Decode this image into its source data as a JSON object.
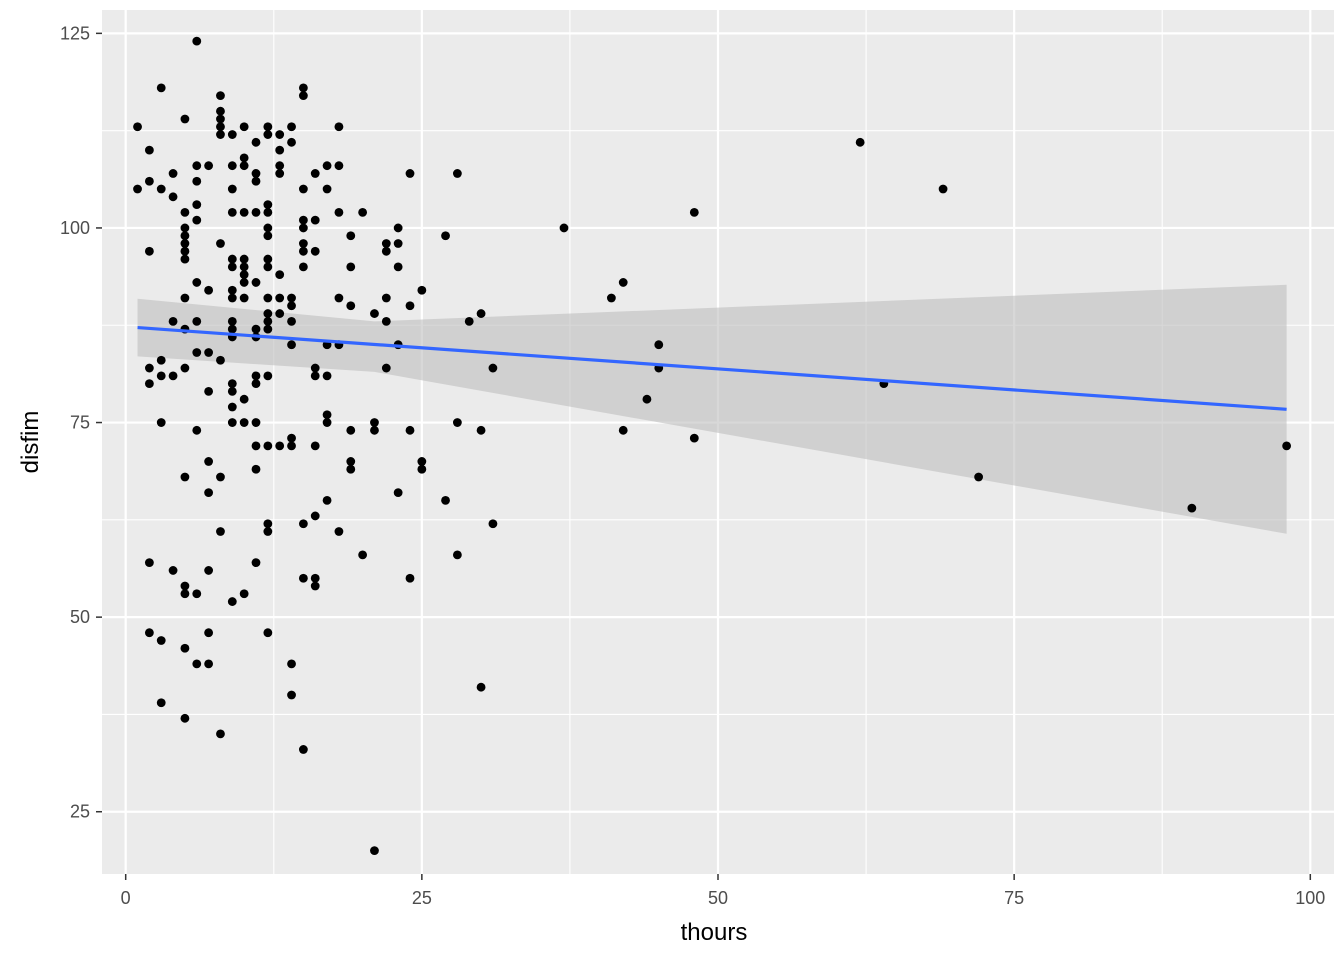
{
  "chart_data": {
    "type": "scatter",
    "xlabel": "thours",
    "ylabel": "disfim",
    "xlim": [
      -2,
      102
    ],
    "ylim": [
      17,
      128
    ],
    "x_ticks": [
      0,
      25,
      50,
      75,
      100
    ],
    "y_ticks": [
      25,
      50,
      75,
      100,
      125
    ],
    "x_minor": [
      12.5,
      37.5,
      62.5,
      87.5
    ],
    "y_minor": [
      37.5,
      62.5,
      87.5,
      112.5
    ],
    "grid": true,
    "colors": {
      "panel": "#ebebeb",
      "grid": "#ffffff",
      "point": "#000000",
      "fit_line": "#3366ff",
      "ribbon": "#bebebe"
    },
    "fit": {
      "method": "linear",
      "x_range": [
        1,
        98
      ],
      "line": [
        [
          1,
          87.2
        ],
        [
          98,
          76.7
        ]
      ],
      "ci_upper": [
        [
          1,
          90.9
        ],
        [
          21,
          88.0
        ],
        [
          98,
          92.7
        ]
      ],
      "ci_lower": [
        [
          1,
          83.5
        ],
        [
          21,
          81.5
        ],
        [
          98,
          60.7
        ]
      ]
    },
    "points": [
      [
        1,
        113
      ],
      [
        1,
        105
      ],
      [
        2,
        110
      ],
      [
        2,
        106
      ],
      [
        2,
        97
      ],
      [
        2,
        82
      ],
      [
        2,
        80
      ],
      [
        2,
        57
      ],
      [
        2,
        48
      ],
      [
        3,
        118
      ],
      [
        3,
        105
      ],
      [
        3,
        83
      ],
      [
        3,
        81
      ],
      [
        3,
        75
      ],
      [
        3,
        47
      ],
      [
        3,
        39
      ],
      [
        4,
        107
      ],
      [
        4,
        104
      ],
      [
        4,
        88
      ],
      [
        4,
        81
      ],
      [
        4,
        56
      ],
      [
        5,
        114
      ],
      [
        5,
        102
      ],
      [
        5,
        100
      ],
      [
        5,
        99
      ],
      [
        5,
        98
      ],
      [
        5,
        97
      ],
      [
        5,
        96
      ],
      [
        5,
        91
      ],
      [
        5,
        87
      ],
      [
        5,
        82
      ],
      [
        5,
        68
      ],
      [
        5,
        54
      ],
      [
        5,
        53
      ],
      [
        5,
        46
      ],
      [
        5,
        37
      ],
      [
        6,
        124
      ],
      [
        6,
        108
      ],
      [
        6,
        106
      ],
      [
        6,
        103
      ],
      [
        6,
        101
      ],
      [
        6,
        93
      ],
      [
        6,
        88
      ],
      [
        6,
        84
      ],
      [
        6,
        74
      ],
      [
        6,
        53
      ],
      [
        6,
        44
      ],
      [
        7,
        108
      ],
      [
        7,
        92
      ],
      [
        7,
        84
      ],
      [
        7,
        79
      ],
      [
        7,
        70
      ],
      [
        7,
        66
      ],
      [
        7,
        56
      ],
      [
        7,
        48
      ],
      [
        7,
        44
      ],
      [
        8,
        117
      ],
      [
        8,
        115
      ],
      [
        8,
        114
      ],
      [
        8,
        113
      ],
      [
        8,
        112
      ],
      [
        8,
        98
      ],
      [
        8,
        83
      ],
      [
        8,
        68
      ],
      [
        8,
        61
      ],
      [
        8,
        35
      ],
      [
        9,
        112
      ],
      [
        9,
        108
      ],
      [
        9,
        105
      ],
      [
        9,
        102
      ],
      [
        9,
        96
      ],
      [
        9,
        95
      ],
      [
        9,
        92
      ],
      [
        9,
        91
      ],
      [
        9,
        88
      ],
      [
        9,
        87
      ],
      [
        9,
        86
      ],
      [
        9,
        80
      ],
      [
        9,
        79
      ],
      [
        9,
        77
      ],
      [
        9,
        75
      ],
      [
        9,
        52
      ],
      [
        10,
        113
      ],
      [
        10,
        109
      ],
      [
        10,
        108
      ],
      [
        10,
        102
      ],
      [
        10,
        96
      ],
      [
        10,
        95
      ],
      [
        10,
        94
      ],
      [
        10,
        93
      ],
      [
        10,
        91
      ],
      [
        10,
        78
      ],
      [
        10,
        75
      ],
      [
        10,
        53
      ],
      [
        11,
        111
      ],
      [
        11,
        107
      ],
      [
        11,
        106
      ],
      [
        11,
        102
      ],
      [
        11,
        93
      ],
      [
        11,
        87
      ],
      [
        11,
        86
      ],
      [
        11,
        81
      ],
      [
        11,
        80
      ],
      [
        11,
        75
      ],
      [
        11,
        72
      ],
      [
        11,
        69
      ],
      [
        11,
        57
      ],
      [
        12,
        113
      ],
      [
        12,
        112
      ],
      [
        12,
        103
      ],
      [
        12,
        102
      ],
      [
        12,
        100
      ],
      [
        12,
        99
      ],
      [
        12,
        96
      ],
      [
        12,
        95
      ],
      [
        12,
        91
      ],
      [
        12,
        89
      ],
      [
        12,
        88
      ],
      [
        12,
        87
      ],
      [
        12,
        81
      ],
      [
        12,
        72
      ],
      [
        12,
        62
      ],
      [
        12,
        61
      ],
      [
        12,
        48
      ],
      [
        13,
        112
      ],
      [
        13,
        110
      ],
      [
        13,
        108
      ],
      [
        13,
        107
      ],
      [
        13,
        94
      ],
      [
        13,
        91
      ],
      [
        13,
        89
      ],
      [
        13,
        72
      ],
      [
        14,
        113
      ],
      [
        14,
        111
      ],
      [
        14,
        91
      ],
      [
        14,
        90
      ],
      [
        14,
        88
      ],
      [
        14,
        85
      ],
      [
        14,
        73
      ],
      [
        14,
        72
      ],
      [
        14,
        44
      ],
      [
        14,
        40
      ],
      [
        15,
        118
      ],
      [
        15,
        117
      ],
      [
        15,
        105
      ],
      [
        15,
        101
      ],
      [
        15,
        100
      ],
      [
        15,
        98
      ],
      [
        15,
        97
      ],
      [
        15,
        95
      ],
      [
        15,
        62
      ],
      [
        15,
        55
      ],
      [
        15,
        33
      ],
      [
        16,
        107
      ],
      [
        16,
        101
      ],
      [
        16,
        97
      ],
      [
        16,
        82
      ],
      [
        16,
        81
      ],
      [
        16,
        72
      ],
      [
        16,
        63
      ],
      [
        16,
        55
      ],
      [
        16,
        54
      ],
      [
        17,
        108
      ],
      [
        17,
        105
      ],
      [
        17,
        85
      ],
      [
        17,
        81
      ],
      [
        17,
        76
      ],
      [
        17,
        75
      ],
      [
        17,
        65
      ],
      [
        18,
        113
      ],
      [
        18,
        108
      ],
      [
        18,
        102
      ],
      [
        18,
        91
      ],
      [
        18,
        85
      ],
      [
        18,
        61
      ],
      [
        19,
        99
      ],
      [
        19,
        95
      ],
      [
        19,
        90
      ],
      [
        19,
        74
      ],
      [
        19,
        70
      ],
      [
        19,
        69
      ],
      [
        20,
        102
      ],
      [
        20,
        58
      ],
      [
        21,
        89
      ],
      [
        21,
        75
      ],
      [
        21,
        74
      ],
      [
        21,
        20
      ],
      [
        22,
        98
      ],
      [
        22,
        97
      ],
      [
        22,
        91
      ],
      [
        22,
        88
      ],
      [
        22,
        82
      ],
      [
        23,
        100
      ],
      [
        23,
        98
      ],
      [
        23,
        95
      ],
      [
        23,
        85
      ],
      [
        23,
        66
      ],
      [
        24,
        107
      ],
      [
        24,
        90
      ],
      [
        24,
        74
      ],
      [
        24,
        55
      ],
      [
        25,
        92
      ],
      [
        25,
        70
      ],
      [
        25,
        69
      ],
      [
        27,
        99
      ],
      [
        27,
        65
      ],
      [
        28,
        107
      ],
      [
        28,
        75
      ],
      [
        28,
        58
      ],
      [
        29,
        88
      ],
      [
        30,
        89
      ],
      [
        30,
        74
      ],
      [
        30,
        41
      ],
      [
        31,
        82
      ],
      [
        31,
        62
      ],
      [
        37,
        100
      ],
      [
        41,
        91
      ],
      [
        42,
        93
      ],
      [
        42,
        74
      ],
      [
        44,
        78
      ],
      [
        45,
        85
      ],
      [
        45,
        82
      ],
      [
        48,
        102
      ],
      [
        48,
        73
      ],
      [
        62,
        111
      ],
      [
        64,
        80
      ],
      [
        69,
        105
      ],
      [
        72,
        68
      ],
      [
        90,
        64
      ],
      [
        98,
        72
      ]
    ]
  }
}
